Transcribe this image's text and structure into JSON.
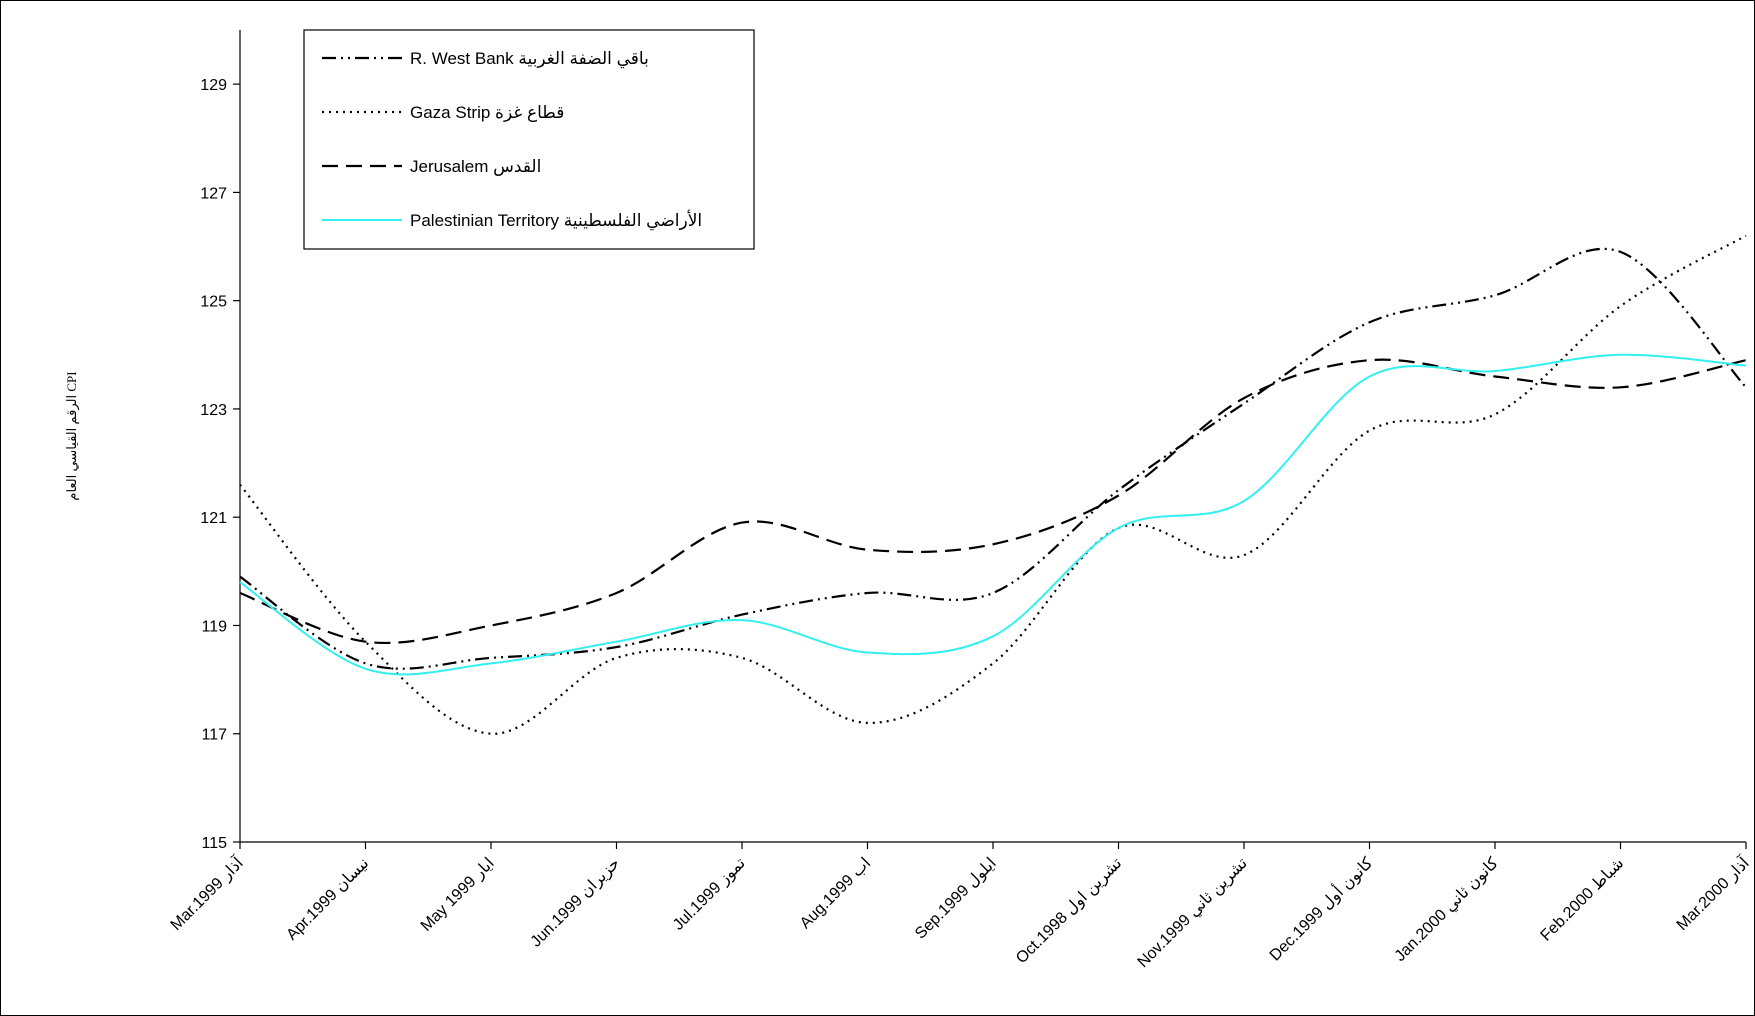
{
  "chart_data": {
    "type": "line",
    "title": "",
    "xlabel": "",
    "ylabel": "الرقم القياسي العام CPI",
    "ylim": [
      115,
      130
    ],
    "yticks": [
      115,
      117,
      119,
      121,
      123,
      125,
      127,
      129
    ],
    "grid": false,
    "legend_position": "top-left",
    "categories": [
      "Mar.1999 آذار",
      "Apr.1999 نيسان",
      "May 1999 ايار",
      "Jun.1999 حزيران",
      "Jul.1999 تموز",
      "Aug.1999 اب",
      "Sep.1999 ايلول",
      "Oct.1998 تشرين اول",
      "Nov.1999 تشرين ثاني",
      "Dec.1999 كانون أول",
      "Jan.2000 كانون ثاني",
      "Feb.2000 شباط",
      "Mar.2000 آذار"
    ],
    "series": [
      {
        "name": "R. West Bank باقي الضفة الغربية",
        "style": "dash-dot-dot",
        "color": "#000000",
        "values": [
          119.9,
          118.3,
          118.4,
          118.6,
          119.2,
          119.6,
          119.6,
          121.5,
          123.1,
          124.6,
          125.1,
          125.9,
          123.4
        ]
      },
      {
        "name": "Gaza Strip قطاع غزة",
        "style": "dotted",
        "color": "#000000",
        "values": [
          121.6,
          118.7,
          117.0,
          118.4,
          118.4,
          117.2,
          118.3,
          120.8,
          120.3,
          122.6,
          122.9,
          124.9,
          126.2
        ]
      },
      {
        "name": "Jerusalem القدس",
        "style": "dashed",
        "color": "#000000",
        "values": [
          119.6,
          118.7,
          119.0,
          119.6,
          120.9,
          120.4,
          120.5,
          121.4,
          123.2,
          123.9,
          123.6,
          123.4,
          123.9
        ]
      },
      {
        "name": "Palestinian Territory الأراضي الفلسطينية",
        "style": "solid",
        "color": "#33F0F0",
        "values": [
          119.8,
          118.2,
          118.3,
          118.7,
          119.1,
          118.5,
          118.8,
          120.8,
          121.3,
          123.6,
          123.7,
          124.0,
          123.8
        ]
      }
    ]
  }
}
